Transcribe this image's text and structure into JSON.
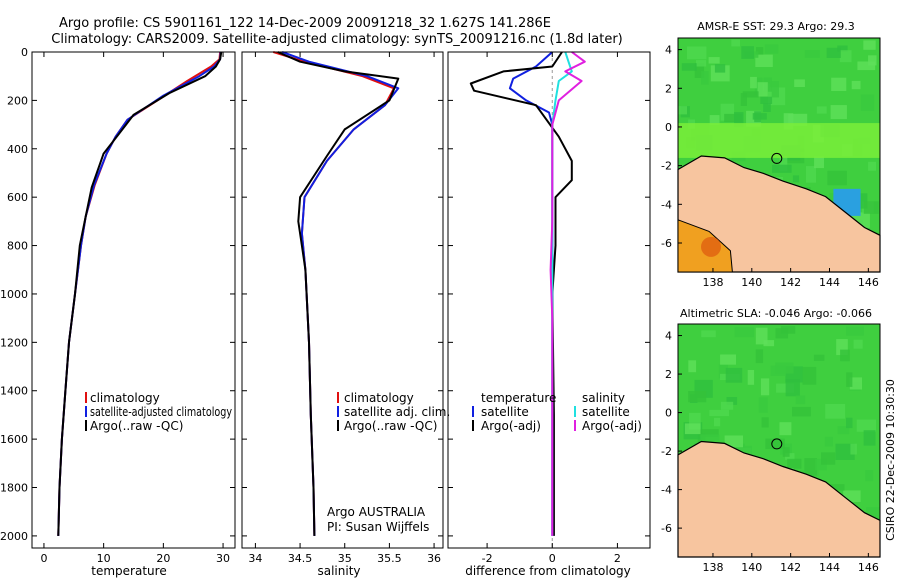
{
  "header": {
    "line1": "Argo profile: CS 5901161_122 14-Dec-2009 20091218_32 1.627S 141.286E",
    "line2": "Climatology: CARS2009. Satellite-adjusted climatology: synTS_20091216.nc (1.8d later)"
  },
  "colors": {
    "climatology": "#e01010",
    "satellite": "#1020e0",
    "argo": "#000000",
    "temp_sat_diff": "#1020e0",
    "sal_sat_diff": "#20e0e0",
    "sal_argo_diff": "#e020e0",
    "land": "#f7c59f",
    "ocean": "#3fcf3f"
  },
  "chart_data": [
    {
      "type": "line",
      "panel": "temperature",
      "xlabel": "temperature",
      "ylabel": "",
      "xlim": [
        -2,
        32
      ],
      "ylim": [
        2050,
        0
      ],
      "xticks": [
        0,
        10,
        20,
        30
      ],
      "yticks": [
        0,
        200,
        400,
        600,
        800,
        1000,
        1200,
        1400,
        1600,
        1800,
        2000
      ],
      "legend": [
        "climatology",
        "satellite-adjusted climatology",
        "Argo(..raw -QC)"
      ],
      "series": [
        {
          "name": "climatology",
          "key": "climatology",
          "points": [
            [
              29.5,
              0
            ],
            [
              29.4,
              30
            ],
            [
              28,
              60
            ],
            [
              24,
              120
            ],
            [
              19,
              200
            ],
            [
              14,
              280
            ],
            [
              12,
              350
            ],
            [
              10.5,
              420
            ],
            [
              8.5,
              550
            ],
            [
              7,
              680
            ],
            [
              6.2,
              800
            ],
            [
              5.2,
              1000
            ],
            [
              4.2,
              1200
            ],
            [
              3.6,
              1400
            ],
            [
              3,
              1600
            ],
            [
              2.6,
              1800
            ],
            [
              2.4,
              2000
            ]
          ]
        },
        {
          "name": "satellite-adjusted climatology",
          "key": "satellite",
          "points": [
            [
              29.6,
              0
            ],
            [
              29.5,
              30
            ],
            [
              28.5,
              60
            ],
            [
              26,
              100
            ],
            [
              20,
              180
            ],
            [
              14,
              280
            ],
            [
              12,
              350
            ],
            [
              10.5,
              420
            ],
            [
              8.4,
              550
            ],
            [
              7,
              680
            ],
            [
              6.2,
              800
            ],
            [
              5.2,
              1000
            ],
            [
              4.2,
              1200
            ],
            [
              3.6,
              1400
            ],
            [
              3,
              1600
            ],
            [
              2.6,
              1800
            ],
            [
              2.4,
              2000
            ]
          ]
        },
        {
          "name": "Argo(..raw -QC)",
          "key": "argo",
          "points": [
            [
              29.7,
              0
            ],
            [
              29.5,
              30
            ],
            [
              28.8,
              60
            ],
            [
              27,
              100
            ],
            [
              21,
              170
            ],
            [
              15,
              260
            ],
            [
              12.5,
              340
            ],
            [
              10,
              420
            ],
            [
              8,
              560
            ],
            [
              7,
              680
            ],
            [
              6,
              800
            ],
            [
              5.2,
              1000
            ],
            [
              4.2,
              1200
            ],
            [
              3.6,
              1400
            ],
            [
              3,
              1600
            ],
            [
              2.6,
              1800
            ],
            [
              2.4,
              2000
            ]
          ]
        }
      ]
    },
    {
      "type": "line",
      "panel": "salinity",
      "xlabel": "salinity",
      "ylabel": "",
      "xlim": [
        33.85,
        36.1
      ],
      "ylim": [
        2050,
        0
      ],
      "xticks": [
        34,
        34.5,
        35,
        35.5,
        36
      ],
      "legend": [
        "climatology",
        "satellite adj. clim.",
        "Argo(..raw -QC)"
      ],
      "annotations": [
        "Argo AUSTRALIA",
        "PI: Susan Wijffels"
      ],
      "series": [
        {
          "name": "climatology",
          "key": "climatology",
          "points": [
            [
              34.2,
              0
            ],
            [
              34.55,
              40
            ],
            [
              35.2,
              100
            ],
            [
              35.55,
              150
            ],
            [
              35.45,
              220
            ],
            [
              35.1,
              320
            ],
            [
              34.8,
              450
            ],
            [
              34.55,
              600
            ],
            [
              34.52,
              750
            ],
            [
              34.56,
              900
            ],
            [
              34.6,
              1200
            ],
            [
              34.62,
              1500
            ],
            [
              34.65,
              1800
            ],
            [
              34.66,
              2000
            ]
          ]
        },
        {
          "name": "satellite adj. clim.",
          "key": "satellite",
          "points": [
            [
              34.3,
              0
            ],
            [
              34.6,
              40
            ],
            [
              35.25,
              100
            ],
            [
              35.6,
              150
            ],
            [
              35.45,
              220
            ],
            [
              35.1,
              320
            ],
            [
              34.8,
              450
            ],
            [
              34.55,
              600
            ],
            [
              34.52,
              750
            ],
            [
              34.56,
              900
            ],
            [
              34.6,
              1200
            ],
            [
              34.62,
              1500
            ],
            [
              34.65,
              1800
            ],
            [
              34.66,
              2000
            ]
          ]
        },
        {
          "name": "Argo(..raw -QC)",
          "key": "argo",
          "points": [
            [
              34.25,
              0
            ],
            [
              34.5,
              40
            ],
            [
              35.0,
              80
            ],
            [
              35.6,
              110
            ],
            [
              35.5,
              200
            ],
            [
              35.0,
              320
            ],
            [
              34.8,
              430
            ],
            [
              34.5,
              600
            ],
            [
              34.48,
              700
            ],
            [
              34.52,
              800
            ],
            [
              34.56,
              900
            ],
            [
              34.6,
              1200
            ],
            [
              34.62,
              1500
            ],
            [
              34.65,
              1800
            ],
            [
              34.66,
              2000
            ]
          ]
        }
      ]
    },
    {
      "type": "line",
      "panel": "difference",
      "xlabel": "difference from climatology",
      "ylabel": "",
      "xlim": [
        -3.2,
        3.0
      ],
      "ylim": [
        2050,
        0
      ],
      "xticks": [
        -2,
        0,
        2
      ],
      "legend": [
        "temperature",
        "satellite",
        "Argo(-adj)",
        "salinity",
        "satellite",
        "Argo(-adj)"
      ],
      "series": [
        {
          "name": "temperature satellite",
          "key": "temp_sat_diff",
          "points": [
            [
              0,
              0
            ],
            [
              -0.5,
              60
            ],
            [
              -1.2,
              110
            ],
            [
              -1.3,
              150
            ],
            [
              -0.8,
              200
            ],
            [
              -0.1,
              250
            ],
            [
              0,
              300
            ],
            [
              0,
              2000
            ]
          ]
        },
        {
          "name": "temperature Argo(-adj)",
          "key": "argo",
          "points": [
            [
              0.3,
              0
            ],
            [
              0,
              60
            ],
            [
              -1.5,
              80
            ],
            [
              -2.5,
              130
            ],
            [
              -2.4,
              160
            ],
            [
              -0.5,
              220
            ],
            [
              0.2,
              350
            ],
            [
              0.6,
              450
            ],
            [
              0.6,
              530
            ],
            [
              0.1,
              600
            ],
            [
              0.1,
              800
            ],
            [
              0,
              1000
            ],
            [
              0.05,
              1500
            ],
            [
              0.05,
              2000
            ]
          ]
        },
        {
          "name": "salinity satellite",
          "key": "sal_sat_diff",
          "points": [
            [
              0.4,
              0
            ],
            [
              0.5,
              40
            ],
            [
              0.6,
              80
            ],
            [
              0.2,
              120
            ],
            [
              0.1,
              200
            ],
            [
              0,
              300
            ],
            [
              0,
              2000
            ]
          ]
        },
        {
          "name": "salinity Argo(-adj)",
          "key": "sal_argo_diff",
          "points": [
            [
              0.6,
              0
            ],
            [
              1.0,
              40
            ],
            [
              0.4,
              80
            ],
            [
              0.9,
              120
            ],
            [
              0.2,
              200
            ],
            [
              0,
              300
            ],
            [
              0,
              700
            ],
            [
              -0.05,
              900
            ],
            [
              0,
              1100
            ],
            [
              0,
              2000
            ]
          ]
        }
      ]
    },
    {
      "type": "heatmap",
      "panel": "map-sst",
      "title": "AMSR-E SST: 29.3 Argo: 29.3",
      "xticks": [
        138,
        140,
        142,
        144,
        146
      ],
      "yticks": [
        4,
        2,
        0,
        -2,
        -4,
        -6
      ],
      "xlim": [
        136.2,
        146.6
      ],
      "ylim": [
        -7.5,
        4.6
      ],
      "marker": [
        141.286,
        -1.627
      ]
    },
    {
      "type": "heatmap",
      "panel": "map-sla",
      "title": "Altimetric SLA: -0.046 Argo: -0.066",
      "xticks": [
        138,
        140,
        142,
        144,
        146
      ],
      "yticks": [
        4,
        2,
        0,
        -2,
        -4,
        -6
      ],
      "xlim": [
        136.2,
        146.6
      ],
      "ylim": [
        -7.5,
        4.6
      ],
      "marker": [
        141.286,
        -1.627
      ]
    }
  ],
  "footer": {
    "stamp": "CSIRO 22-Dec-2009 10:30:30"
  }
}
